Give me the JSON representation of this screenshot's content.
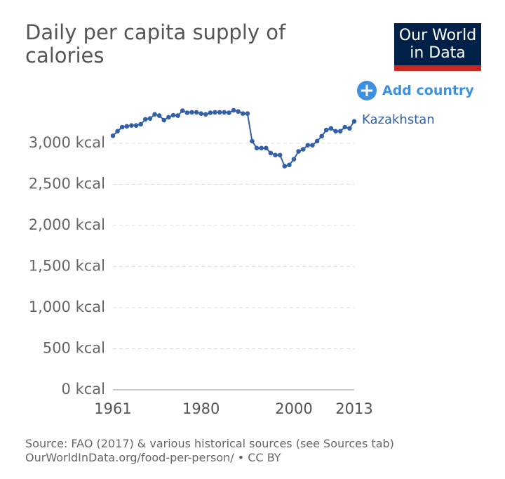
{
  "logo": {
    "line1": "Our World",
    "line2": "in Data"
  },
  "button": {
    "label": "Add country"
  },
  "footer": {
    "source": "Source: FAO (2017) & various historical sources (see Sources tab)",
    "url": "OurWorldInData.org/food-per-person/ • CC BY"
  },
  "chart_data": {
    "type": "line",
    "title": "Daily per capita supply of calories",
    "x": [
      1961,
      1962,
      1963,
      1964,
      1965,
      1966,
      1967,
      1968,
      1969,
      1970,
      1971,
      1972,
      1973,
      1974,
      1975,
      1976,
      1977,
      1978,
      1979,
      1980,
      1981,
      1982,
      1983,
      1984,
      1985,
      1986,
      1987,
      1988,
      1989,
      1990,
      1991,
      1992,
      1993,
      1994,
      1995,
      1996,
      1997,
      1998,
      1999,
      2000,
      2001,
      2002,
      2003,
      2004,
      2005,
      2006,
      2007,
      2008,
      2009,
      2010,
      2011,
      2012,
      2013
    ],
    "series": [
      {
        "name": "Kazakhstan",
        "color": "#3360a9",
        "values": [
          3090,
          3145,
          3195,
          3205,
          3215,
          3215,
          3230,
          3290,
          3300,
          3350,
          3335,
          3280,
          3315,
          3340,
          3335,
          3395,
          3370,
          3375,
          3375,
          3360,
          3350,
          3370,
          3375,
          3375,
          3375,
          3370,
          3400,
          3385,
          3360,
          3360,
          3025,
          2940,
          2940,
          2940,
          2880,
          2855,
          2855,
          2720,
          2735,
          2805,
          2900,
          2925,
          2975,
          2975,
          3025,
          3085,
          3160,
          3180,
          3145,
          3145,
          3195,
          3180,
          3265
        ]
      }
    ],
    "xlim": [
      1961,
      2013
    ],
    "xticks": [
      1961,
      1980,
      2000,
      2013
    ],
    "ylim": [
      0,
      3400
    ],
    "yticks": [
      {
        "value": 0,
        "label": "0 kcal"
      },
      {
        "value": 500,
        "label": "500 kcal"
      },
      {
        "value": 1000,
        "label": "1,000 kcal"
      },
      {
        "value": 1500,
        "label": "1,500 kcal"
      },
      {
        "value": 2000,
        "label": "2,000 kcal"
      },
      {
        "value": 2500,
        "label": "2,500 kcal"
      },
      {
        "value": 3000,
        "label": "3,000 kcal"
      }
    ],
    "grid": true
  }
}
